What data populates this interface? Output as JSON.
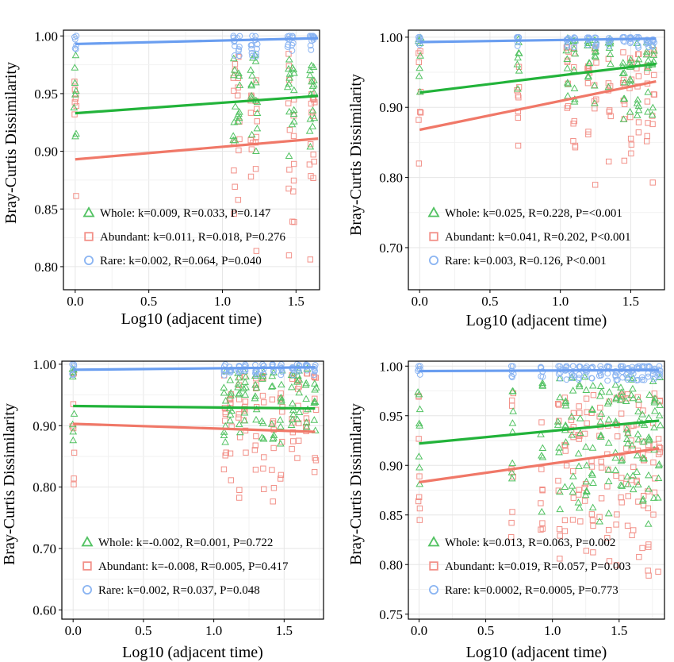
{
  "colors": {
    "whole": "#22b33a",
    "abundant": "#f07868",
    "rare": "#6a9ef0",
    "whole_pts": "#52c262",
    "abundant_pts": "#f29088",
    "rare_pts": "#8ab4f2"
  },
  "chart_data": [
    {
      "type": "scatter",
      "panel": "top-left",
      "xlabel": "Log10 (adjacent time)",
      "ylabel": "Bray-Curtis Dissimilarity",
      "xlim": [
        -0.08,
        1.66
      ],
      "ylim": [
        0.78,
        1.005
      ],
      "xticks": [
        0.0,
        0.5,
        1.0,
        1.5
      ],
      "yticks": [
        0.8,
        0.85,
        0.9,
        0.95,
        1.0
      ],
      "xtick_labels": [
        "0.0",
        "0.5",
        "1.0",
        "1.5"
      ],
      "ytick_labels": [
        "0.80",
        "0.85",
        "0.90",
        "0.95",
        "1.00"
      ],
      "x_positions": [
        0.0,
        1.08,
        1.11,
        1.2,
        1.23,
        1.45,
        1.48,
        1.6,
        1.62
      ],
      "grid": true,
      "legend_position": "bottom-left",
      "series": [
        {
          "key": "whole",
          "name": "Whole",
          "marker": "triangle",
          "legend": "Whole: k=0.009, R=0.033, P=0.147",
          "fit": {
            "x": [
              0.0,
              1.65
            ],
            "y": [
              0.933,
              0.948
            ]
          },
          "spread": [
            0.885,
            0.985
          ]
        },
        {
          "key": "abundant",
          "name": "Abundant",
          "marker": "square",
          "legend": "Abundant: k=0.011, R=0.018, P=0.276",
          "fit": {
            "x": [
              0.0,
              1.65
            ],
            "y": [
              0.893,
              0.911
            ]
          },
          "spread": [
            0.795,
            0.985
          ]
        },
        {
          "key": "rare",
          "name": "Rare",
          "marker": "circle",
          "legend": "Rare: k=0.002, R=0.064, P=0.040",
          "fit": {
            "x": [
              0.0,
              1.65
            ],
            "y": [
              0.993,
              0.998
            ]
          },
          "spread": [
            0.982,
            1.0
          ]
        }
      ]
    },
    {
      "type": "scatter",
      "panel": "top-right",
      "xlabel": "Log10 (adjacent time)",
      "ylabel": "Bray-Curtis Dissimilarity",
      "xlim": [
        -0.08,
        1.74
      ],
      "ylim": [
        0.64,
        1.01
      ],
      "xticks": [
        0.0,
        0.5,
        1.0,
        1.5
      ],
      "yticks": [
        0.7,
        0.8,
        0.9,
        1.0
      ],
      "xtick_labels": [
        "0.0",
        "0.5",
        "1.0",
        "1.5"
      ],
      "ytick_labels": [
        "0.70",
        "0.80",
        "0.90",
        "1.00"
      ],
      "x_positions": [
        0.0,
        0.7,
        1.05,
        1.1,
        1.2,
        1.25,
        1.35,
        1.45,
        1.5,
        1.55,
        1.62,
        1.66
      ],
      "grid": true,
      "legend_position": "bottom-left",
      "series": [
        {
          "key": "whole",
          "name": "Whole",
          "marker": "triangle",
          "legend": "Whole: k=0.025, R=0.228, P=<0.001",
          "fit": {
            "x": [
              0.0,
              1.68
            ],
            "y": [
              0.921,
              0.962
            ]
          },
          "spread": [
            0.88,
            1.0
          ]
        },
        {
          "key": "abundant",
          "name": "Abundant",
          "marker": "square",
          "legend": "Abundant: k=0.041, R=0.202, P<0.001",
          "fit": {
            "x": [
              0.0,
              1.68
            ],
            "y": [
              0.868,
              0.937
            ]
          },
          "spread": [
            0.78,
            0.99
          ]
        },
        {
          "key": "rare",
          "name": "Rare",
          "marker": "circle",
          "legend": "Rare: k=0.003, R=0.126, P<0.001",
          "fit": {
            "x": [
              0.0,
              1.68
            ],
            "y": [
              0.993,
              0.998
            ]
          },
          "spread": [
            0.985,
            1.0
          ]
        }
      ]
    },
    {
      "type": "scatter",
      "panel": "bottom-left",
      "xlabel": "Log10 (adjacent time)",
      "ylabel": "Bray-Curtis Dissimilarity",
      "xlim": [
        -0.08,
        1.78
      ],
      "ylim": [
        0.585,
        1.005
      ],
      "xticks": [
        0.0,
        0.5,
        1.0,
        1.5
      ],
      "yticks": [
        0.6,
        0.7,
        0.8,
        0.9,
        1.0
      ],
      "xtick_labels": [
        "0.0",
        "0.5",
        "1.0",
        "1.5"
      ],
      "ytick_labels": [
        "0.60",
        "0.70",
        "0.80",
        "0.90",
        "1.00"
      ],
      "x_positions": [
        0.0,
        1.08,
        1.12,
        1.18,
        1.22,
        1.3,
        1.35,
        1.42,
        1.48,
        1.56,
        1.6,
        1.66,
        1.72
      ],
      "grid": true,
      "legend_position": "bottom-left",
      "series": [
        {
          "key": "whole",
          "name": "Whole",
          "marker": "triangle",
          "legend": "Whole: k=-0.002, R=0.001, P=0.722",
          "fit": {
            "x": [
              0.0,
              1.72
            ],
            "y": [
              0.932,
              0.928
            ]
          },
          "spread": [
            0.86,
            0.995
          ]
        },
        {
          "key": "abundant",
          "name": "Abundant",
          "marker": "square",
          "legend": "Abundant: k=-0.008, R=0.005, P=0.417",
          "fit": {
            "x": [
              0.0,
              1.72
            ],
            "y": [
              0.903,
              0.89
            ]
          },
          "spread": [
            0.77,
            0.99
          ]
        },
        {
          "key": "rare",
          "name": "Rare",
          "marker": "circle",
          "legend": "Rare: k=0.002, R=0.037, P=0.048",
          "fit": {
            "x": [
              0.0,
              1.72
            ],
            "y": [
              0.991,
              0.995
            ]
          },
          "spread": [
            0.982,
            1.0
          ]
        }
      ]
    },
    {
      "type": "scatter",
      "panel": "bottom-right",
      "xlabel": "Log10 (adjacent time)",
      "ylabel": "Bray-Curtis Dissimilarity",
      "xlim": [
        -0.08,
        1.84
      ],
      "ylim": [
        0.745,
        1.005
      ],
      "xticks": [
        0.0,
        0.5,
        1.0,
        1.5
      ],
      "yticks": [
        0.75,
        0.8,
        0.85,
        0.9,
        0.95,
        1.0
      ],
      "xtick_labels": [
        "0.0",
        "0.5",
        "1.0",
        "1.5"
      ],
      "ytick_labels": [
        "0.75",
        "0.80",
        "0.85",
        "0.90",
        "0.95",
        "1.00"
      ],
      "x_positions": [
        0.0,
        0.7,
        0.92,
        1.05,
        1.1,
        1.15,
        1.2,
        1.25,
        1.3,
        1.36,
        1.42,
        1.48,
        1.52,
        1.56,
        1.6,
        1.64,
        1.68,
        1.72,
        1.76,
        1.8
      ],
      "grid": true,
      "legend_position": "bottom-left",
      "series": [
        {
          "key": "whole",
          "name": "Whole",
          "marker": "triangle",
          "legend": "Whole: k=0.013, R=0.063, P=0.002",
          "fit": {
            "x": [
              0.0,
              1.8
            ],
            "y": [
              0.922,
              0.945
            ]
          },
          "spread": [
            0.84,
            0.99
          ]
        },
        {
          "key": "abundant",
          "name": "Abundant",
          "marker": "square",
          "legend": "Abundant: k=0.019, R=0.057, P=0.003",
          "fit": {
            "x": [
              0.0,
              1.8
            ],
            "y": [
              0.883,
              0.917
            ]
          },
          "spread": [
            0.775,
            0.975
          ]
        },
        {
          "key": "rare",
          "name": "Rare",
          "marker": "circle",
          "legend": "Rare: k=0.0002, R=0.0005, P=0.773",
          "fit": {
            "x": [
              0.0,
              1.8
            ],
            "y": [
              0.995,
              0.996
            ]
          },
          "spread": [
            0.985,
            1.0
          ]
        }
      ]
    }
  ]
}
